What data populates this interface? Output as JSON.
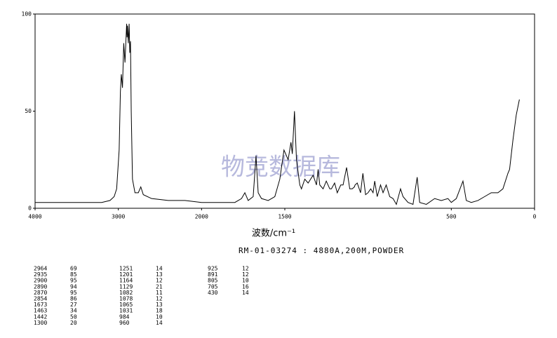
{
  "chart_data": {
    "type": "line",
    "title": "RM-01-03274 : 4880A,200M,POWDER",
    "x_label": "波数/cm⁻¹",
    "watermark": "物竞数据库",
    "color": "#000000",
    "xlim": [
      4000,
      0
    ],
    "ylim": [
      0,
      100
    ],
    "xticks": [
      4000,
      3000,
      2000,
      1500,
      500,
      0
    ],
    "yticks": [
      0,
      50,
      100
    ],
    "x_scale_break": 2000,
    "x_scale_factor": 2,
    "x": [
      4000,
      3600,
      3200,
      3100,
      3050,
      3020,
      2990,
      2975,
      2964,
      2950,
      2935,
      2920,
      2900,
      2895,
      2890,
      2880,
      2870,
      2862,
      2854,
      2845,
      2830,
      2800,
      2760,
      2730,
      2700,
      2600,
      2400,
      2200,
      2000,
      1800,
      1760,
      1740,
      1720,
      1690,
      1673,
      1660,
      1640,
      1600,
      1560,
      1530,
      1505,
      1480,
      1463,
      1455,
      1442,
      1430,
      1410,
      1400,
      1380,
      1360,
      1330,
      1310,
      1300,
      1290,
      1270,
      1251,
      1230,
      1220,
      1201,
      1185,
      1164,
      1150,
      1129,
      1110,
      1095,
      1082,
      1078,
      1065,
      1045,
      1031,
      1015,
      1000,
      984,
      970,
      960,
      945,
      925,
      910,
      891,
      870,
      850,
      830,
      805,
      790,
      760,
      730,
      705,
      690,
      650,
      600,
      560,
      520,
      500,
      470,
      430,
      410,
      380,
      340,
      300,
      260,
      220,
      190,
      160,
      150,
      130,
      110,
      91
    ],
    "values": [
      3,
      3,
      3,
      4,
      6,
      10,
      30,
      60,
      69,
      62,
      85,
      75,
      95,
      88,
      94,
      85,
      95,
      80,
      86,
      50,
      15,
      8,
      8,
      11,
      7,
      5,
      4,
      4,
      3,
      3,
      5,
      8,
      4,
      6,
      27,
      8,
      5,
      4,
      6,
      15,
      30,
      25,
      34,
      28,
      50,
      25,
      12,
      10,
      15,
      13,
      17,
      12,
      20,
      12,
      10,
      14,
      10,
      10,
      13,
      8,
      12,
      12,
      21,
      10,
      10,
      11,
      12,
      13,
      8,
      18,
      7,
      8,
      10,
      8,
      14,
      6,
      12,
      8,
      12,
      6,
      5,
      2,
      10,
      6,
      3,
      2,
      16,
      3,
      2,
      5,
      4,
      5,
      3,
      5,
      14,
      4,
      3,
      4,
      6,
      8,
      8,
      10,
      18,
      20,
      35,
      48,
      56
    ]
  },
  "peak_table": {
    "columns": [
      [
        [
          2964,
          69
        ],
        [
          2935,
          85
        ],
        [
          2900,
          95
        ],
        [
          2890,
          94
        ],
        [
          2870,
          95
        ],
        [
          2854,
          86
        ],
        [
          1673,
          27
        ],
        [
          1463,
          34
        ],
        [
          1442,
          50
        ],
        [
          1300,
          20
        ]
      ],
      [
        [
          1251,
          14
        ],
        [
          1201,
          13
        ],
        [
          1164,
          12
        ],
        [
          1129,
          21
        ],
        [
          1082,
          11
        ],
        [
          1078,
          12
        ],
        [
          1065,
          13
        ],
        [
          1031,
          18
        ],
        [
          984,
          10
        ],
        [
          960,
          14
        ]
      ],
      [
        [
          925,
          12
        ],
        [
          891,
          12
        ],
        [
          805,
          10
        ],
        [
          705,
          16
        ],
        [
          430,
          14
        ]
      ]
    ]
  }
}
